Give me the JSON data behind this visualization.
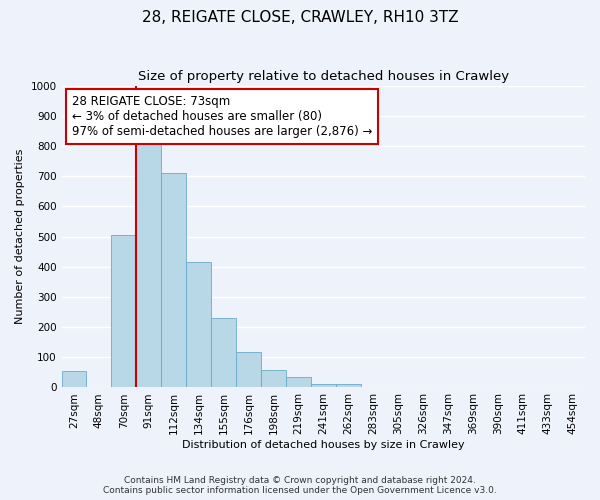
{
  "title": "28, REIGATE CLOSE, CRAWLEY, RH10 3TZ",
  "subtitle": "Size of property relative to detached houses in Crawley",
  "xlabel": "Distribution of detached houses by size in Crawley",
  "ylabel": "Number of detached properties",
  "bin_labels": [
    "27sqm",
    "48sqm",
    "70sqm",
    "91sqm",
    "112sqm",
    "134sqm",
    "155sqm",
    "176sqm",
    "198sqm",
    "219sqm",
    "241sqm",
    "262sqm",
    "283sqm",
    "305sqm",
    "326sqm",
    "347sqm",
    "369sqm",
    "390sqm",
    "411sqm",
    "433sqm",
    "454sqm"
  ],
  "bar_values": [
    55,
    0,
    505,
    820,
    710,
    415,
    230,
    118,
    57,
    35,
    10,
    10,
    0,
    0,
    0,
    0,
    0,
    0,
    0,
    0,
    0
  ],
  "bar_color": "#b8d8e8",
  "bar_edge_color": "#6aaac8",
  "vline_x_index": 2,
  "vline_color": "#cc0000",
  "annotation_line1": "28 REIGATE CLOSE: 73sqm",
  "annotation_line2": "← 3% of detached houses are smaller (80)",
  "annotation_line3": "97% of semi-detached houses are larger (2,876) →",
  "annotation_box_color": "#ffffff",
  "annotation_box_edge_color": "#cc0000",
  "ylim": [
    0,
    1000
  ],
  "yticks": [
    0,
    100,
    200,
    300,
    400,
    500,
    600,
    700,
    800,
    900,
    1000
  ],
  "footer_line1": "Contains HM Land Registry data © Crown copyright and database right 2024.",
  "footer_line2": "Contains public sector information licensed under the Open Government Licence v3.0.",
  "background_color": "#eef2fb",
  "grid_color": "#ffffff",
  "title_fontsize": 11,
  "subtitle_fontsize": 9.5,
  "axis_label_fontsize": 8,
  "tick_fontsize": 7.5,
  "annotation_fontsize": 8.5,
  "footer_fontsize": 6.5
}
